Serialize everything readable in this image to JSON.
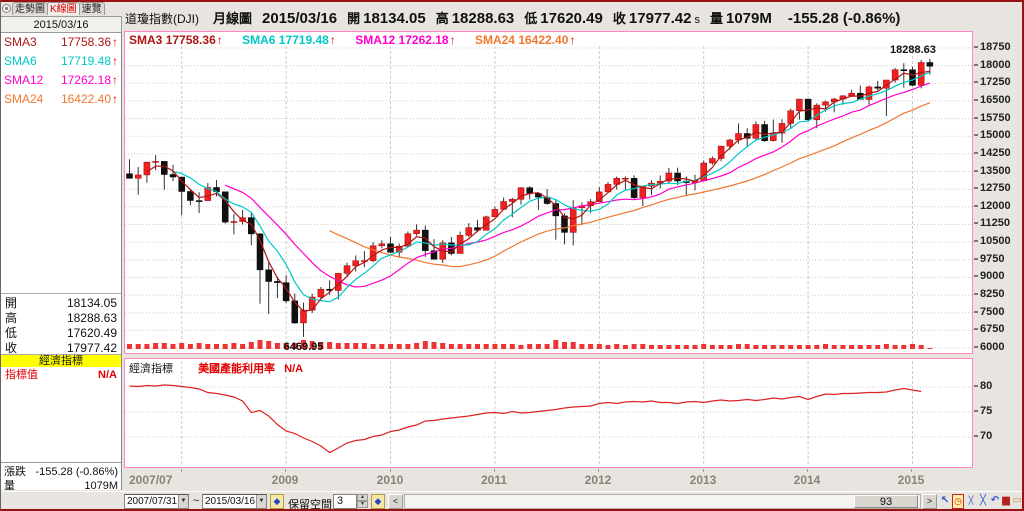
{
  "tabs": {
    "items": [
      {
        "label": "走勢圖",
        "selected": false
      },
      {
        "label": "K線圖",
        "selected": true
      },
      {
        "label": "速覽",
        "selected": false
      }
    ]
  },
  "sidebar": {
    "date": "2015/03/16",
    "econ_header": "經濟指標",
    "indicator_label": "指標值",
    "indicator_value": "N/A",
    "change_label": "漲跌",
    "change_value": "-155.28 (-0.86%)",
    "volume_label": "量",
    "volume_value": "1079M"
  },
  "sma": [
    {
      "name": "SMA3",
      "value": "17758.36",
      "arrow": "↑",
      "color": "#b01515"
    },
    {
      "name": "SMA6",
      "value": "17719.48",
      "arrow": "↑",
      "color": "#00c8c8"
    },
    {
      "name": "SMA12",
      "value": "17262.18",
      "arrow": "↑",
      "color": "#ff00cc"
    },
    {
      "name": "SMA24",
      "value": "16422.40",
      "arrow": "↑",
      "color": "#f07830"
    }
  ],
  "header": {
    "instrument": "道瓊指數(DJI)",
    "period": "月線圖",
    "date": "2015/03/16",
    "open_label": "開",
    "open": "18134.05",
    "high_label": "高",
    "high": "18288.63",
    "low_label": "低",
    "low": "17620.49",
    "close_label": "收",
    "close": "17977.42",
    "close_suffix": "s",
    "vol_label": "量",
    "vol": "1079M",
    "change": "-155.28 (-0.86%)"
  },
  "colors": {
    "up_candle": "#ee2222",
    "down_candle": "#111111",
    "wick": "#333333",
    "volume_bar": "#ee3333",
    "grid": "#cccccc",
    "panel_border": "#fe87c3",
    "negative": "#ee0000",
    "econ_header_bg": "#ffff00"
  },
  "chart_data": [
    {
      "type": "candlestick",
      "title": "道瓊指數(DJI) 月線圖",
      "start": "2007/07",
      "end": "2015/03",
      "bars": 93,
      "ylim": [
        6000,
        18750
      ],
      "ytick_step": 750,
      "xticks": [
        {
          "label": "2007/07",
          "index": 0
        },
        {
          "label": "2009",
          "index": 18
        },
        {
          "label": "2010",
          "index": 30
        },
        {
          "label": "2011",
          "index": 42
        },
        {
          "label": "2012",
          "index": 54
        },
        {
          "label": "2013",
          "index": 66
        },
        {
          "label": "2014",
          "index": 78
        },
        {
          "label": "2015",
          "index": 90
        }
      ],
      "year_grid_indices": [
        6,
        18,
        30,
        42,
        54,
        66,
        78,
        90
      ],
      "open": [
        13409,
        13212,
        13358,
        13896,
        13930,
        13372,
        13262,
        12650,
        12266,
        12263,
        12820,
        12638,
        11350,
        11378,
        11544,
        10851,
        9325,
        8829,
        8776,
        8001,
        7063,
        7609,
        8168,
        8500,
        8447,
        9172,
        9496,
        9712,
        9713,
        10345,
        10428,
        10067,
        10325,
        10857,
        11009,
        10137,
        9774,
        10466,
        10015,
        10788,
        11118,
        11006,
        11578,
        11892,
        12226,
        12320,
        12811,
        12570,
        12414,
        12143,
        11614,
        10913,
        11955,
        12046,
        12218,
        12633,
        12952,
        13212,
        13214,
        12393,
        12880,
        13009,
        13091,
        13437,
        13096,
        13026,
        13104,
        13861,
        14054,
        14579,
        14840,
        15116,
        14910,
        15500,
        14810,
        15130,
        15546,
        16086,
        16577,
        15699,
        16322,
        16458,
        16581,
        16717,
        16827,
        16563,
        17098,
        17043,
        17391,
        17828,
        17823,
        17165,
        18134.05
      ],
      "high": [
        14022,
        13696,
        13924,
        14198,
        13937,
        13780,
        13280,
        12767,
        12622,
        13010,
        13136,
        12638,
        11698,
        11867,
        11790,
        10882,
        9654,
        9026,
        9088,
        8315,
        7931,
        8306,
        8591,
        8878,
        9196,
        9630,
        9937,
        10120,
        10495,
        10580,
        10730,
        10438,
        10955,
        11258,
        11205,
        10626,
        10585,
        10720,
        10948,
        11308,
        11451,
        11625,
        12020,
        12391,
        12383,
        12832,
        12876,
        12570,
        12753,
        12283,
        11717,
        12284,
        12187,
        12328,
        12842,
        13055,
        13289,
        13297,
        13338,
        12898,
        13128,
        13330,
        13653,
        13661,
        13290,
        13365,
        13969,
        14149,
        14585,
        14887,
        15542,
        15340,
        15634,
        15658,
        15709,
        15721,
        16175,
        16588,
        16588,
        16398,
        16505,
        16631,
        16735,
        16978,
        17151,
        17153,
        17350,
        17395,
        17894,
        18103,
        17951,
        18244,
        18288.63
      ],
      "low": [
        13200,
        12518,
        13021,
        13566,
        12724,
        13092,
        11635,
        12069,
        11732,
        12266,
        12442,
        11288,
        10828,
        11248,
        10366,
        7882,
        7449,
        8118,
        7909,
        7033,
        6469.95,
        7485,
        8087,
        8260,
        8057,
        9053,
        9253,
        9430,
        9647,
        10236,
        10043,
        9835,
        10298,
        10772,
        9869,
        9757,
        9614,
        9937,
        10016,
        10711,
        10918,
        11006,
        11573,
        11893,
        11555,
        12094,
        12309,
        11863,
        12083,
        10604,
        10404,
        10362,
        11231,
        11735,
        12221,
        12633,
        12734,
        12710,
        12311,
        12035,
        12492,
        12779,
        12977,
        12920,
        12471,
        12696,
        13104,
        13784,
        13937,
        14434,
        14688,
        14551,
        14858,
        14760,
        14777,
        14719,
        15341,
        15703,
        15618,
        15340,
        16046,
        16015,
        16341,
        16673,
        16563,
        16334,
        16934,
        15855,
        17276,
        17067,
        17136,
        17037,
        17620.49
      ],
      "close": [
        13212,
        13358,
        13896,
        13930,
        13372,
        13265,
        12650,
        12266,
        12263,
        12820,
        12638,
        11350,
        11378,
        11544,
        10851,
        9325,
        8829,
        8776,
        8001,
        7063,
        7609,
        8168,
        8500,
        8447,
        9172,
        9496,
        9712,
        9713,
        10345,
        10428,
        10067,
        10325,
        10857,
        11009,
        10137,
        9774,
        10466,
        10015,
        10788,
        11118,
        11006,
        11578,
        11892,
        12226,
        12320,
        12811,
        12570,
        12414,
        12143,
        11614,
        10913,
        11955,
        12046,
        12218,
        12633,
        12952,
        13212,
        13214,
        12393,
        12880,
        13009,
        13091,
        13437,
        13096,
        13026,
        13104,
        13861,
        14054,
        14579,
        14840,
        15116,
        14910,
        15500,
        14810,
        15130,
        15546,
        16086,
        16577,
        15699,
        16322,
        16458,
        16581,
        16717,
        16827,
        16563,
        17098,
        17043,
        17391,
        17828,
        17823,
        17165,
        18133,
        17977.42
      ],
      "volume": [
        4200,
        4400,
        4100,
        4600,
        4800,
        3900,
        5000,
        4400,
        4700,
        4200,
        4000,
        4500,
        5300,
        4100,
        5800,
        7400,
        6300,
        5000,
        5100,
        4900,
        7100,
        6600,
        5900,
        5400,
        5000,
        4700,
        4900,
        5200,
        4500,
        4000,
        4300,
        4200,
        4400,
        4900,
        6900,
        5500,
        4700,
        4200,
        4300,
        4500,
        4100,
        3800,
        3900,
        3700,
        4300,
        3600,
        3900,
        4000,
        4100,
        7000,
        6000,
        5600,
        4300,
        3900,
        3700,
        3600,
        3800,
        3500,
        4100,
        3800,
        3300,
        3000,
        3200,
        3400,
        3300,
        3500,
        3700,
        3400,
        3500,
        3400,
        3700,
        3900,
        3300,
        3200,
        3500,
        3600,
        3200,
        3100,
        3600,
        3400,
        3700,
        3300,
        3000,
        3100,
        3200,
        3100,
        3400,
        4000,
        3300,
        3400,
        3700,
        3400,
        1079
      ],
      "overlays": [
        {
          "name": "SMA24",
          "period": 24,
          "color": "#f07830"
        },
        {
          "name": "SMA12",
          "period": 12,
          "color": "#ff00cc"
        },
        {
          "name": "SMA6",
          "period": 6,
          "color": "#00c8c8"
        },
        {
          "name": "SMA3",
          "period": 3,
          "color": "#b01515"
        }
      ],
      "annotations": [
        {
          "index": 92,
          "price": 18288.63,
          "text": "18288.63",
          "position": "above"
        },
        {
          "index": 20,
          "price": 6469.95,
          "text": "6469.95",
          "position": "below"
        }
      ]
    },
    {
      "type": "line",
      "panel_label": "經濟指標",
      "name": "美國產能利用率",
      "value_display": "N/A",
      "yticks": [
        80,
        75,
        70
      ],
      "color": "#dd2222",
      "values": [
        80.2,
        80.1,
        80.3,
        80.2,
        80.4,
        80.3,
        80.1,
        79.9,
        79.6,
        78.9,
        78.7,
        78.4,
        78.0,
        77.2,
        74.9,
        75.3,
        74.2,
        72.5,
        71.2,
        70.7,
        69.8,
        69.1,
        68.2,
        66.9,
        67.8,
        68.8,
        69.3,
        69.5,
        70.1,
        70.4,
        71.1,
        71.4,
        72.0,
        72.4,
        73.2,
        73.3,
        73.6,
        73.8,
        74.0,
        74.2,
        74.5,
        74.8,
        74.9,
        74.7,
        75.1,
        74.8,
        74.9,
        75.1,
        75.3,
        75.5,
        75.8,
        76.0,
        76.1,
        76.2,
        76.7,
        76.9,
        76.7,
        77.0,
        77.1,
        77.0,
        77.2,
        76.9,
        76.9,
        76.7,
        77.0,
        77.1,
        76.9,
        77.2,
        77.4,
        77.2,
        77.3,
        77.5,
        77.3,
        77.5,
        77.8,
        77.6,
        77.9,
        78.1,
        77.5,
        78.1,
        78.6,
        78.5,
        78.7,
        78.7,
        78.8,
        78.9,
        78.9,
        79.0,
        79.4,
        79.7,
        79.4,
        79.1,
        null
      ]
    }
  ],
  "toolbar": {
    "date_from": "2007/07/31",
    "range_separator": "~",
    "date_to": "2015/03/16",
    "dropdown_glyph": "▼",
    "reserve_label": "保留空間",
    "reserve_value": "3",
    "spinner_up": "▲",
    "spinner_down": "▼",
    "hand_icon_glyph": "◆",
    "scroll_left": "<",
    "scroll_right": ">",
    "scroll_value": "93",
    "right_icons": [
      {
        "name": "cursor-icon",
        "glyph": "↖"
      },
      {
        "name": "clock-icon",
        "glyph": "◷"
      },
      {
        "name": "shrink-icon",
        "glyph": "╳"
      },
      {
        "name": "stretch-icon",
        "glyph": "╳"
      },
      {
        "name": "undo-icon",
        "glyph": "↶"
      },
      {
        "name": "bar-chart-icon",
        "glyph": "▆"
      },
      {
        "name": "folder-icon",
        "glyph": "▭"
      }
    ]
  }
}
